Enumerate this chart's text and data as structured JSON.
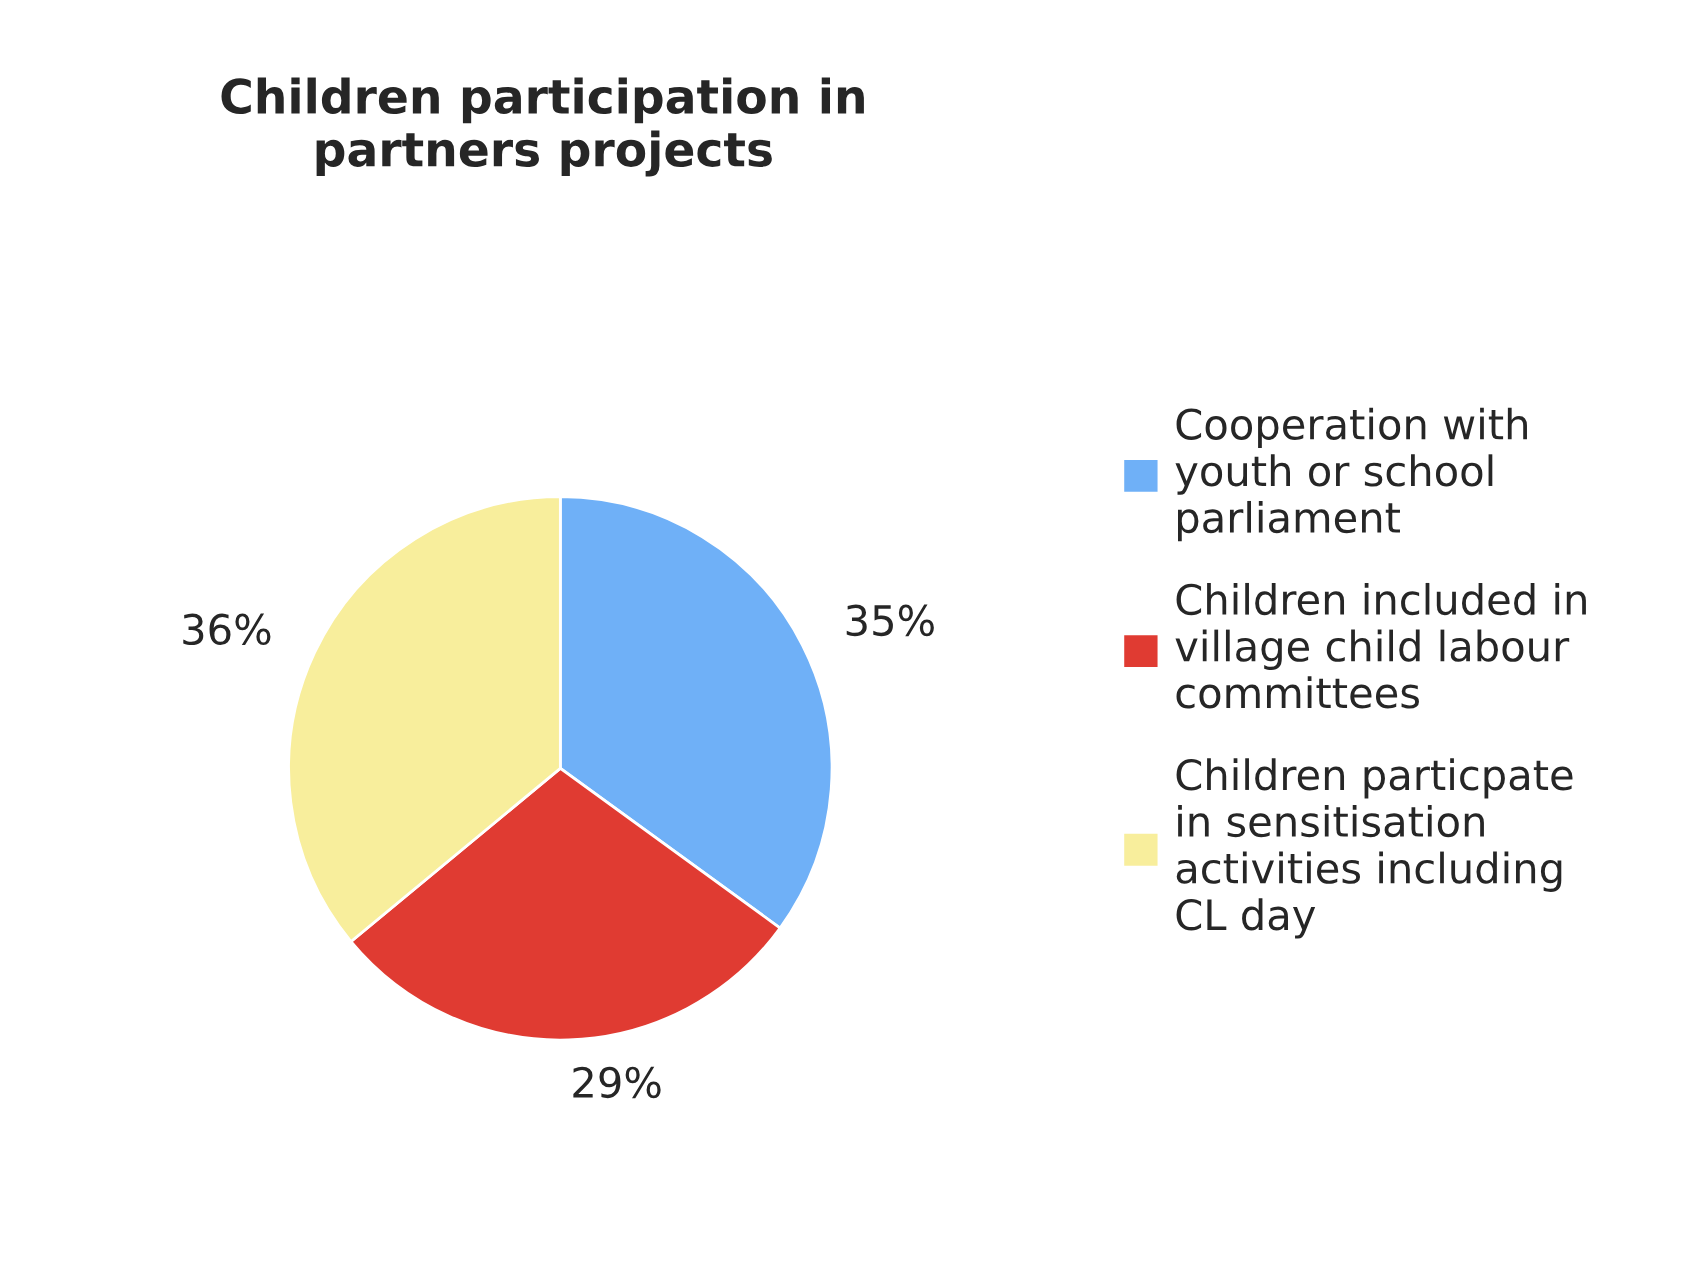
{
  "chart_data": {
    "type": "pie",
    "title": "Children participation in\npartners projects",
    "categories": [
      "Cooperation with\nyouth or school\nparliament",
      "Children included in\nvillage child labour\ncommittees",
      "Children particpate\nin sensitisation\nactivities including\nCL day"
    ],
    "values": [
      35,
      29,
      36
    ],
    "colors": [
      "#6fb0f7",
      "#e03b32",
      "#f8ee9c"
    ],
    "value_labels": [
      "35%",
      "29%",
      "36%"
    ],
    "legend": "right"
  }
}
